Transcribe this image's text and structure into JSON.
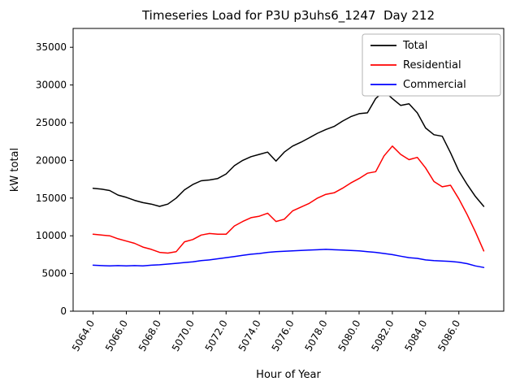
{
  "chart_data": {
    "type": "line",
    "title": "Timeseries Load for P3U p3uhs6_1247  Day 212",
    "xlabel": "Hour of Year",
    "ylabel": "kW total",
    "xlim": [
      5062.8,
      5088.7
    ],
    "ylim": [
      0,
      37500
    ],
    "grid": false,
    "legend_position": "upper right",
    "xticks": [
      {
        "value": 5064,
        "label": "5064.0"
      },
      {
        "value": 5066,
        "label": "5066.0"
      },
      {
        "value": 5068,
        "label": "5068.0"
      },
      {
        "value": 5070,
        "label": "5070.0"
      },
      {
        "value": 5072,
        "label": "5072.0"
      },
      {
        "value": 5074,
        "label": "5074.0"
      },
      {
        "value": 5076,
        "label": "5076.0"
      },
      {
        "value": 5078,
        "label": "5078.0"
      },
      {
        "value": 5080,
        "label": "5080.0"
      },
      {
        "value": 5082,
        "label": "5082.0"
      },
      {
        "value": 5084,
        "label": "5084.0"
      },
      {
        "value": 5086,
        "label": "5086.0"
      }
    ],
    "yticks": [
      {
        "value": 0,
        "label": "0"
      },
      {
        "value": 5000,
        "label": "5000"
      },
      {
        "value": 10000,
        "label": "10000"
      },
      {
        "value": 15000,
        "label": "15000"
      },
      {
        "value": 20000,
        "label": "20000"
      },
      {
        "value": 25000,
        "label": "25000"
      },
      {
        "value": 30000,
        "label": "30000"
      },
      {
        "value": 35000,
        "label": "35000"
      }
    ],
    "x": [
      5064.0,
      5064.5,
      5065.0,
      5065.5,
      5066.0,
      5066.5,
      5067.0,
      5067.5,
      5068.0,
      5068.5,
      5069.0,
      5069.5,
      5070.0,
      5070.5,
      5071.0,
      5071.5,
      5072.0,
      5072.5,
      5073.0,
      5073.5,
      5074.0,
      5074.5,
      5075.0,
      5075.5,
      5076.0,
      5076.5,
      5077.0,
      5077.5,
      5078.0,
      5078.5,
      5079.0,
      5079.5,
      5080.0,
      5080.5,
      5081.0,
      5081.5,
      5082.0,
      5082.5,
      5083.0,
      5083.5,
      5084.0,
      5084.5,
      5085.0,
      5085.5,
      5086.0,
      5086.5,
      5087.0,
      5087.5
    ],
    "series": [
      {
        "name": "Total",
        "color": "#000000",
        "values": [
          16300,
          16200,
          16000,
          15400,
          15100,
          14700,
          14400,
          14200,
          13900,
          14200,
          15000,
          16100,
          16800,
          17300,
          17400,
          17600,
          18200,
          19300,
          20000,
          20500,
          20800,
          21100,
          19900,
          21100,
          21900,
          22400,
          23000,
          23600,
          24100,
          24500,
          25200,
          25800,
          26200,
          26300,
          28200,
          29200,
          28200,
          27300,
          27500,
          26300,
          24300,
          23400,
          23200,
          21000,
          18600,
          16800,
          15200,
          13900
        ]
      },
      {
        "name": "Residential",
        "color": "#ff0000",
        "values": [
          10200,
          10100,
          10000,
          9600,
          9300,
          9000,
          8500,
          8200,
          7800,
          7700,
          7900,
          9200,
          9500,
          10100,
          10300,
          10200,
          10200,
          11300,
          11900,
          12400,
          12600,
          13000,
          11900,
          12200,
          13300,
          13800,
          14300,
          15000,
          15500,
          15700,
          16300,
          17000,
          17600,
          18300,
          18500,
          20600,
          21900,
          20800,
          20100,
          20400,
          19000,
          17200,
          16500,
          16700,
          14900,
          12800,
          10500,
          8000
        ]
      },
      {
        "name": "Commercial",
        "color": "#0000ff",
        "values": [
          6100,
          6050,
          6000,
          6050,
          6000,
          6050,
          6000,
          6100,
          6150,
          6250,
          6350,
          6450,
          6550,
          6700,
          6800,
          6950,
          7100,
          7250,
          7400,
          7550,
          7650,
          7800,
          7900,
          7950,
          8000,
          8050,
          8100,
          8150,
          8200,
          8150,
          8100,
          8050,
          8000,
          7900,
          7800,
          7650,
          7500,
          7300,
          7100,
          7000,
          6800,
          6700,
          6650,
          6600,
          6500,
          6300,
          6000,
          5800
        ]
      }
    ]
  }
}
